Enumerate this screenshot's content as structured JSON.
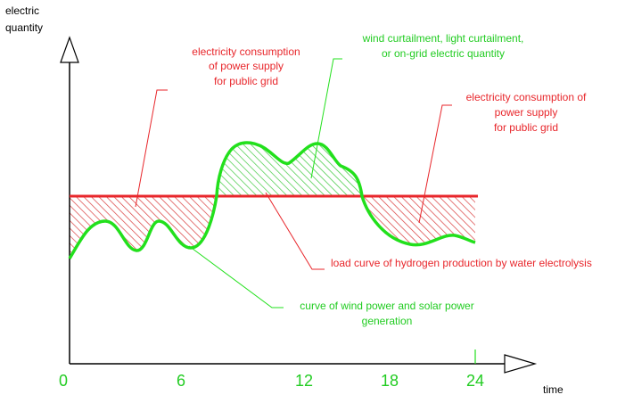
{
  "axes": {
    "y_label_lines": [
      "electric",
      "quantity"
    ],
    "x_label": "time",
    "x_ticks": [
      "0",
      "6",
      "12",
      "18",
      "24"
    ]
  },
  "annotations": {
    "consumption_left": [
      "electricity consumption",
      "of power supply",
      "for public grid"
    ],
    "curtailment": [
      "wind curtailment, light curtailment,",
      "or on-grid electric quantity"
    ],
    "consumption_right": [
      "electricity consumption of",
      "power supply",
      "for public grid"
    ],
    "load_curve": "load curve of hydrogen production by water electrolysis",
    "generation_curve": [
      "curve of wind power and solar power",
      "generation"
    ]
  },
  "colors": {
    "load_line": "#e8262b",
    "generation_line": "#22e01c",
    "red_label": "#e8262b",
    "green_label": "#22cc22",
    "tick_color": "#22cc22",
    "axis": "#000000"
  }
}
